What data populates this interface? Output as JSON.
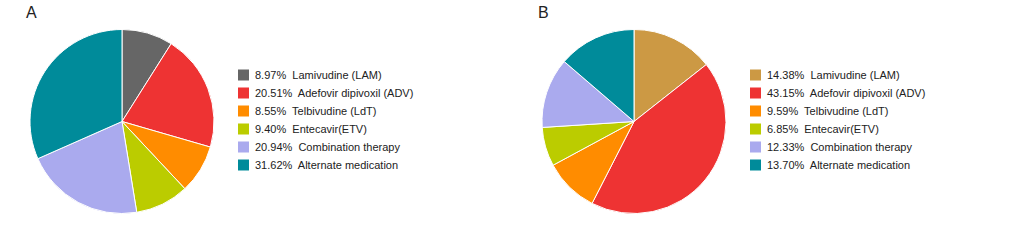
{
  "chart_data": [
    {
      "type": "pie",
      "title": "A",
      "categories": [
        "8.97%  Lamivudine (LAM)",
        "20.51%  Adefovir dipivoxil (ADV)",
        "8.55%  Telbivudine (LdT)",
        "9.40%  Entecavir(ETV)",
        "20.94%  Combination therapy",
        "31.62%  Alternate medication"
      ],
      "values": [
        8.97,
        20.51,
        8.55,
        9.4,
        20.94,
        31.62
      ],
      "colors": [
        "#666666",
        "#EE3333",
        "#FF8C00",
        "#BBCC00",
        "#AAAAEE",
        "#008B9A"
      ],
      "legend": "right"
    },
    {
      "type": "pie",
      "title": "B",
      "categories": [
        "14.38%  Lamivudine (LAM)",
        "43.15%  Adefovir dipivoxil (ADV)",
        "9.59%  Telbivudine (LdT)",
        "6.85%  Entecavir(ETV)",
        "12.33%  Combination therapy",
        "13.70%  Alternate medication"
      ],
      "values": [
        14.38,
        43.15,
        9.59,
        6.85,
        12.33,
        13.7
      ],
      "colors": [
        "#CC9944",
        "#EE3333",
        "#FF8C00",
        "#BBCC00",
        "#AAAAEE",
        "#008B9A"
      ],
      "legend": "right"
    }
  ]
}
